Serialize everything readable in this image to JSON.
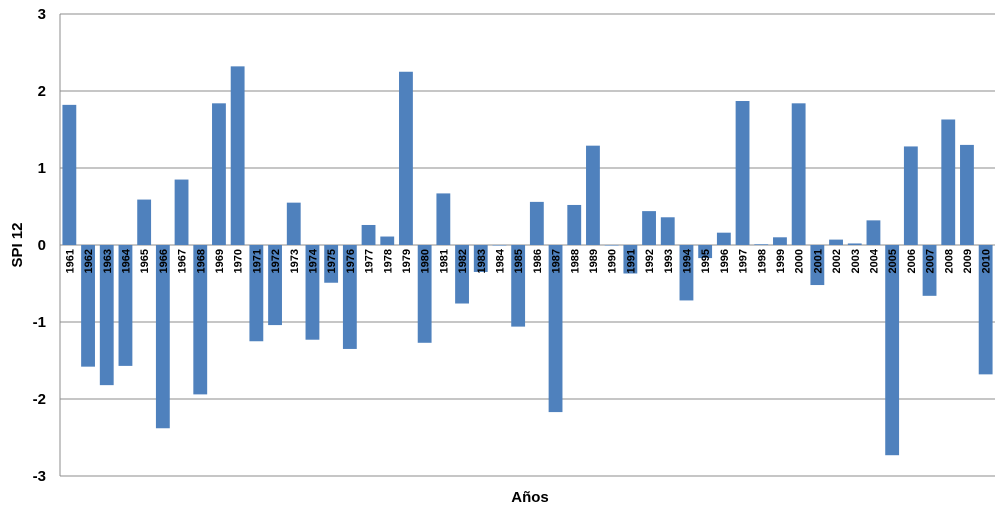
{
  "chart_data": {
    "type": "bar",
    "xlabel": "Años",
    "ylabel": "SPI 12",
    "ylim": [
      -3,
      3
    ],
    "yticks": [
      -3,
      -2,
      -1,
      0,
      1,
      2,
      3
    ],
    "grid": "horizontal",
    "bar_color": "#4F81BD",
    "categories": [
      "1961",
      "1962",
      "1963",
      "1964",
      "1965",
      "1966",
      "1967",
      "1968",
      "1969",
      "1970",
      "1971",
      "1972",
      "1973",
      "1974",
      "1975",
      "1976",
      "1977",
      "1978",
      "1979",
      "1980",
      "1981",
      "1982",
      "1983",
      "1984",
      "1985",
      "1986",
      "1987",
      "1988",
      "1989",
      "1990",
      "1991",
      "1992",
      "1993",
      "1994",
      "1995",
      "1996",
      "1997",
      "1998",
      "1999",
      "2000",
      "2001",
      "2002",
      "2003",
      "2004",
      "2005",
      "2006",
      "2007",
      "2008",
      "2009",
      "2010"
    ],
    "values": [
      1.82,
      -1.58,
      -1.82,
      -1.57,
      0.59,
      -2.38,
      0.85,
      -1.94,
      1.84,
      2.32,
      -1.25,
      -1.04,
      0.55,
      -1.23,
      -0.49,
      -1.35,
      0.26,
      0.11,
      2.25,
      -1.27,
      0.67,
      -0.76,
      -0.35,
      0.0,
      -1.06,
      0.56,
      -2.17,
      0.52,
      1.29,
      0.0,
      -0.37,
      0.44,
      0.36,
      -0.72,
      -0.17,
      0.16,
      1.87,
      0.01,
      0.1,
      1.84,
      -0.52,
      0.07,
      0.02,
      0.32,
      -2.73,
      1.28,
      -0.66,
      1.63,
      1.3,
      -1.68
    ]
  }
}
